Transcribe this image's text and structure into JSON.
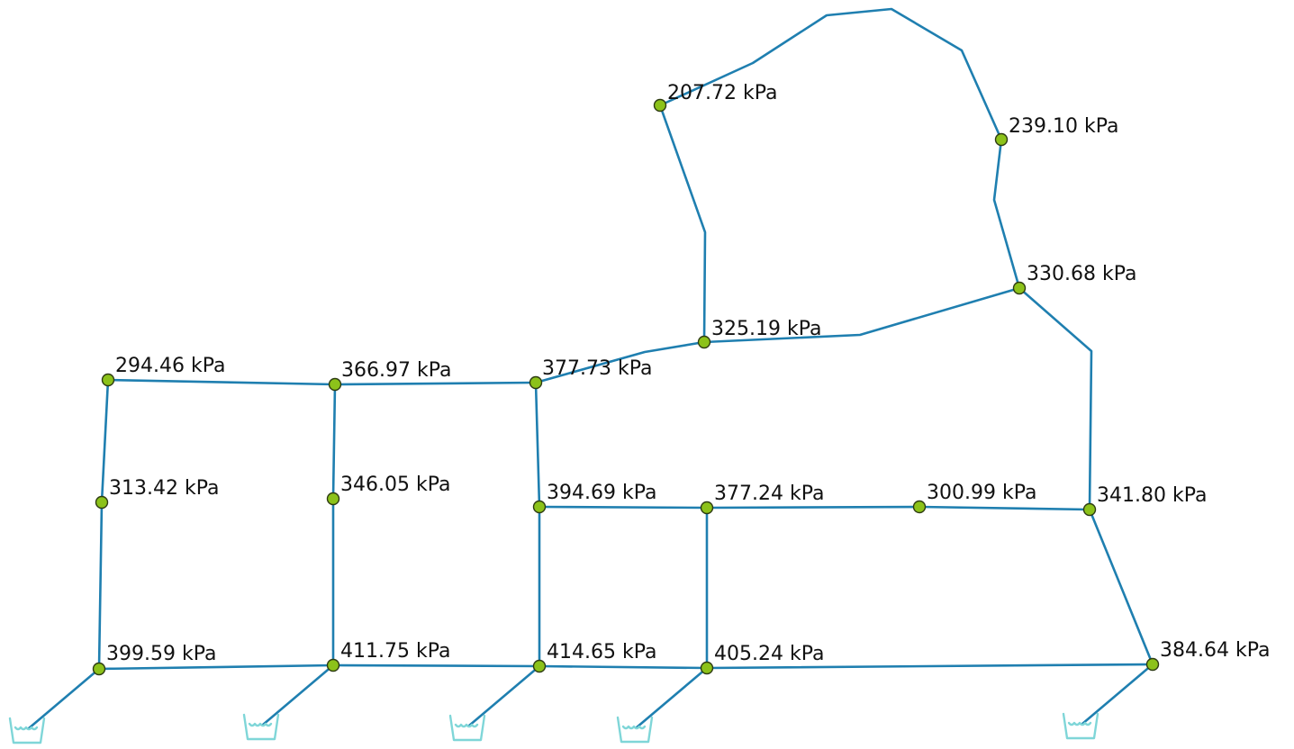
{
  "colors": {
    "pipe": "#1f7fb0",
    "node_fill": "#8cc21a",
    "reservoir": "#7fd6d8",
    "label": "#111111"
  },
  "pressure_unit": "kPa",
  "icons": {
    "node": "junction-node-icon",
    "reservoir": "reservoir-icon"
  },
  "nodes": [
    {
      "id": "n01",
      "label": "207.72 kPa"
    },
    {
      "id": "n02",
      "label": "239.10 kPa"
    },
    {
      "id": "n03",
      "label": "330.68 kPa"
    },
    {
      "id": "n04",
      "label": "325.19 kPa"
    },
    {
      "id": "n05",
      "label": "294.46 kPa"
    },
    {
      "id": "n06",
      "label": "366.97 kPa"
    },
    {
      "id": "n07",
      "label": "377.73 kPa"
    },
    {
      "id": "n08",
      "label": "313.42 kPa"
    },
    {
      "id": "n09",
      "label": "346.05 kPa"
    },
    {
      "id": "n10",
      "label": "394.69 kPa"
    },
    {
      "id": "n11",
      "label": "377.24 kPa"
    },
    {
      "id": "n12",
      "label": "300.99 kPa"
    },
    {
      "id": "n13",
      "label": "341.80 kPa"
    },
    {
      "id": "n14",
      "label": "399.59 kPa"
    },
    {
      "id": "n15",
      "label": "411.75 kPa"
    },
    {
      "id": "n16",
      "label": "414.65 kPa"
    },
    {
      "id": "n17",
      "label": "405.24 kPa"
    },
    {
      "id": "n18",
      "label": "384.64 kPa"
    }
  ],
  "pipes": [
    {
      "from": "n01",
      "to": "n02"
    },
    {
      "from": "n01",
      "to": "n04"
    },
    {
      "from": "n02",
      "to": "n03"
    },
    {
      "from": "n03",
      "to": "n04"
    },
    {
      "from": "n03",
      "to": "n13"
    },
    {
      "from": "n04",
      "to": "n07"
    },
    {
      "from": "n05",
      "to": "n06"
    },
    {
      "from": "n06",
      "to": "n07"
    },
    {
      "from": "n05",
      "to": "n08"
    },
    {
      "from": "n08",
      "to": "n14"
    },
    {
      "from": "n06",
      "to": "n09"
    },
    {
      "from": "n09",
      "to": "n15"
    },
    {
      "from": "n07",
      "to": "n10"
    },
    {
      "from": "n10",
      "to": "n16"
    },
    {
      "from": "n10",
      "to": "n11"
    },
    {
      "from": "n11",
      "to": "n12"
    },
    {
      "from": "n12",
      "to": "n13"
    },
    {
      "from": "n11",
      "to": "n17"
    },
    {
      "from": "n13",
      "to": "n18"
    },
    {
      "from": "n14",
      "to": "n15"
    },
    {
      "from": "n15",
      "to": "n16"
    },
    {
      "from": "n16",
      "to": "n17"
    },
    {
      "from": "n17",
      "to": "n18"
    }
  ],
  "reservoirs": [
    {
      "id": "r1",
      "node": "n14"
    },
    {
      "id": "r2",
      "node": "n15"
    },
    {
      "id": "r3",
      "node": "n16"
    },
    {
      "id": "r4",
      "node": "n17"
    },
    {
      "id": "r5",
      "node": "n18"
    }
  ]
}
